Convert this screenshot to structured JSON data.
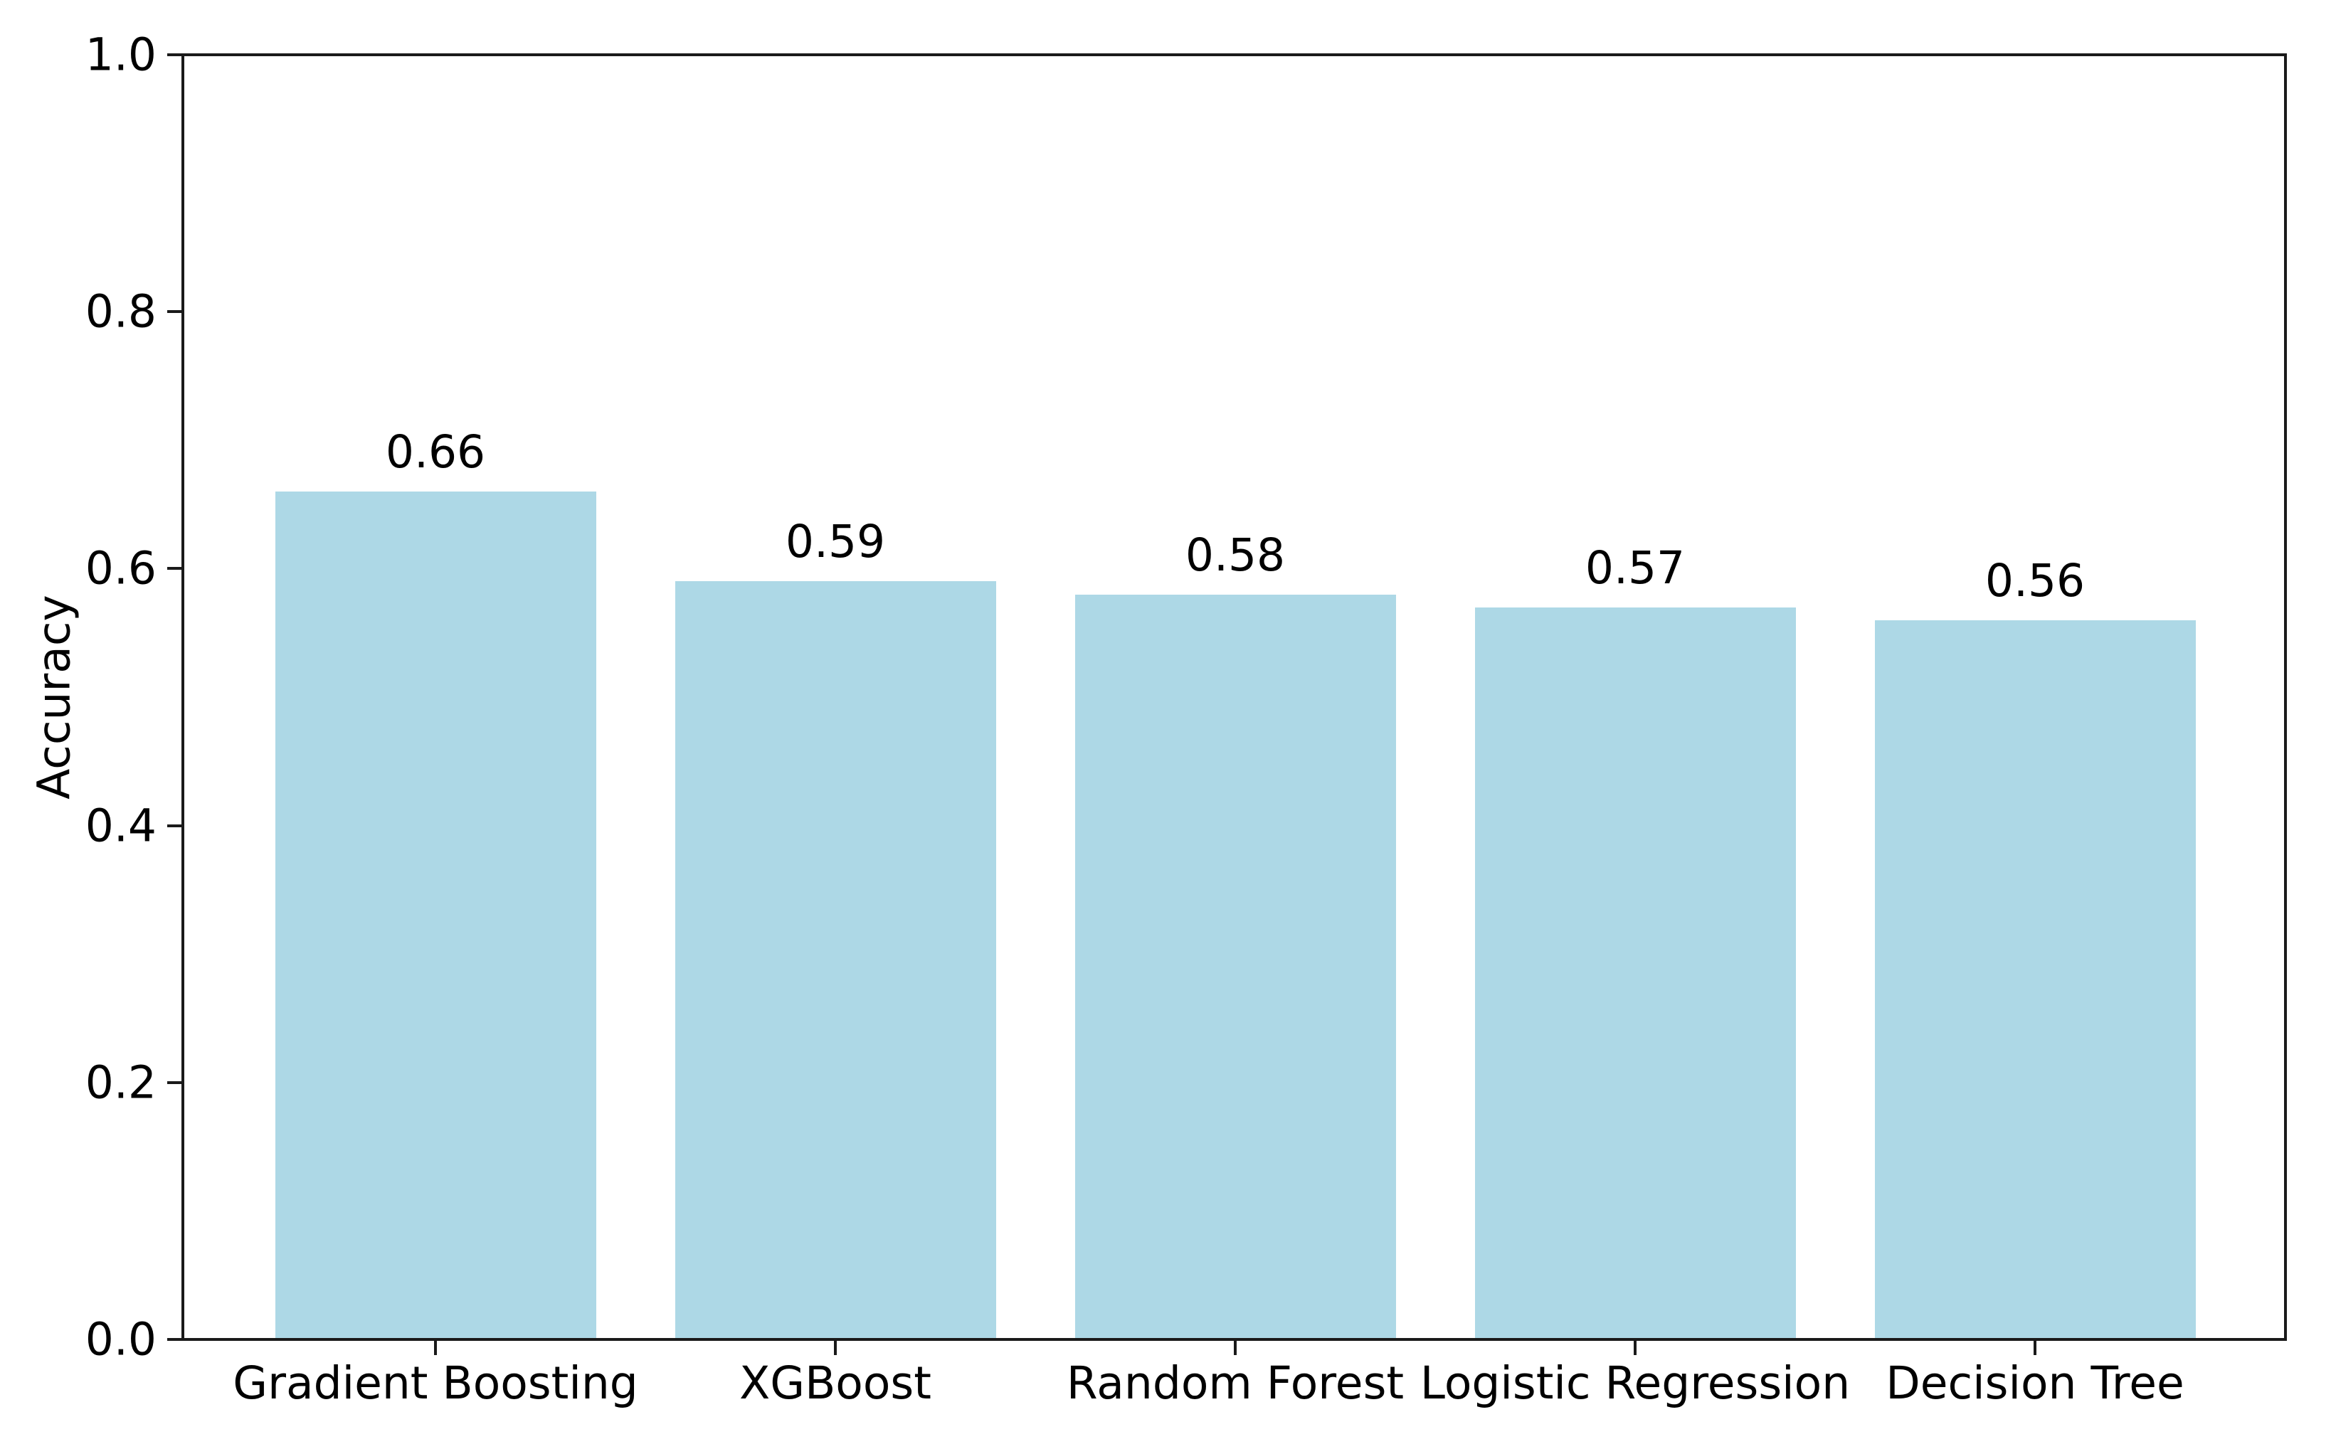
{
  "figure": {
    "background": "#ffffff",
    "axis_color": "#1a1a1a",
    "text_color": "#000000"
  },
  "chart_data": {
    "type": "bar",
    "title": "",
    "xlabel": "",
    "ylabel": "Accuracy",
    "categories": [
      "Gradient Boosting",
      "XGBoost",
      "Random Forest",
      "Logistic Regression",
      "Decision Tree"
    ],
    "values": [
      0.66,
      0.59,
      0.58,
      0.57,
      0.56
    ],
    "bar_value_labels": [
      "0.66",
      "0.59",
      "0.58",
      "0.57",
      "0.56"
    ],
    "ylim": [
      0.0,
      1.0
    ],
    "yticks": [
      "0.0",
      "0.2",
      "0.4",
      "0.6",
      "0.8",
      "1.0"
    ],
    "grid": false,
    "legend_position": "none",
    "bar_color": "#add8e6"
  }
}
